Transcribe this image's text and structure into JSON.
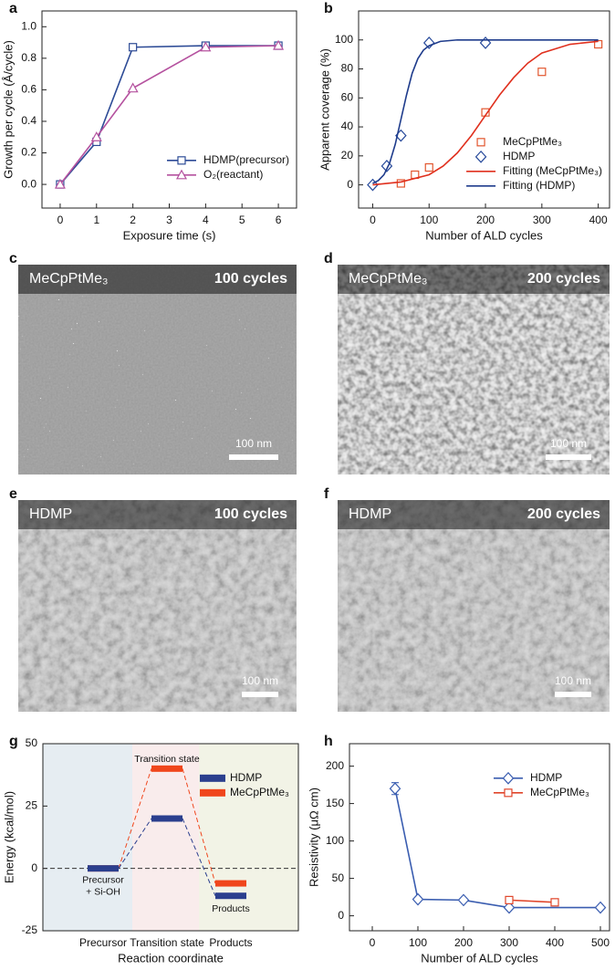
{
  "chart_data": [
    {
      "label": "a",
      "type": "line",
      "xlabel": "Exposure time (s)",
      "ylabel": "Growth per cycle (Å/cycle)",
      "x": [
        0,
        1,
        2,
        4,
        6
      ],
      "xlim": [
        -0.5,
        6.5
      ],
      "xticks": [
        0,
        1,
        2,
        3,
        4,
        5,
        6
      ],
      "ylim": [
        -0.15,
        1.1
      ],
      "yticks": [
        {
          "value": 0,
          "label": "0.0"
        },
        {
          "value": 0.2,
          "label": "0.2"
        },
        {
          "value": 0.4,
          "label": "0.4"
        },
        {
          "value": 0.6,
          "label": "0.6"
        },
        {
          "value": 0.8,
          "label": "0.8"
        },
        {
          "value": 1,
          "label": "1.0"
        }
      ],
      "legend": "lower right",
      "series": [
        {
          "name": "HDMP(precursor)",
          "color": "#2d4b96",
          "marker": "square",
          "values": [
            0,
            0.27,
            0.87,
            0.88,
            0.88
          ]
        },
        {
          "name": "O₂(reactant)",
          "color": "#b5529f",
          "marker": "triangle",
          "values": [
            0,
            0.3,
            0.61,
            0.87,
            0.88
          ]
        }
      ]
    },
    {
      "label": "b",
      "type": "line",
      "xlabel": "Number of ALD cycles",
      "ylabel": "Apparent coverage (%)",
      "xlim": [
        -25,
        420
      ],
      "xticks": [
        0,
        100,
        200,
        300,
        400
      ],
      "ylim": [
        -16,
        120
      ],
      "yticks": [
        0,
        20,
        40,
        60,
        80,
        100
      ],
      "legend": "lower right",
      "series": [
        {
          "name": "MeCpPtMe₃",
          "color": "#e2562e",
          "marker": "square",
          "line": false,
          "x": [
            50,
            75,
            100,
            200,
            300,
            400
          ],
          "values": [
            1,
            7,
            12,
            50,
            78,
            97
          ]
        },
        {
          "name": "HDMP",
          "color": "#2a4c9c",
          "marker": "diamond",
          "line": false,
          "x": [
            0,
            25,
            50,
            100,
            200
          ],
          "values": [
            0,
            13,
            34,
            98,
            98
          ]
        },
        {
          "name": "Fitting (MeCpPtMe₃)",
          "color": "#e0301e",
          "x": [
            0,
            50,
            100,
            125,
            150,
            175,
            200,
            225,
            250,
            275,
            300,
            350,
            400
          ],
          "values": [
            0,
            2,
            7,
            13,
            22,
            34,
            48,
            62,
            74,
            84,
            91,
            97,
            99
          ]
        },
        {
          "name": "Fitting (HDMP)",
          "color": "#1f3c8c",
          "x": [
            0,
            10,
            20,
            30,
            40,
            50,
            60,
            70,
            80,
            90,
            100,
            120,
            150,
            200,
            300,
            400
          ],
          "values": [
            1,
            3,
            7,
            15,
            28,
            45,
            62,
            77,
            87,
            93,
            96,
            99,
            100,
            100,
            100,
            100
          ]
        }
      ]
    },
    {
      "label": "g",
      "type": "level",
      "xlabel": "Reaction coordinate",
      "ylabel": "Energy (kcal/mol)",
      "categories": [
        "Precursor",
        "Transition state",
        "Products"
      ],
      "ylim": [
        -25,
        50
      ],
      "yticks": [
        -25,
        0,
        25,
        50
      ],
      "legend": "upper right",
      "zero_line": true,
      "annotations": [
        "Transition state",
        "Precursor",
        "+ Si-OH",
        "Products"
      ],
      "series": [
        {
          "name": "HDMP",
          "color": "#2b3f8e",
          "values": [
            0,
            20,
            -11
          ]
        },
        {
          "name": "MeCpPtMe₃",
          "color": "#f0461c",
          "values": [
            0,
            40,
            -6
          ]
        }
      ]
    },
    {
      "label": "h",
      "type": "line",
      "xlabel": "Number of ALD cycles",
      "ylabel": "Resistivity (μΩ cm)",
      "xlim": [
        -50,
        520
      ],
      "xticks": [
        0,
        100,
        200,
        300,
        400,
        500
      ],
      "ylim": [
        -20,
        230
      ],
      "yticks": [
        0,
        50,
        100,
        150,
        200
      ],
      "legend": "upper right",
      "series": [
        {
          "name": "HDMP",
          "color": "#3a5db0",
          "marker": "diamond",
          "x": [
            50,
            100,
            200,
            300,
            500
          ],
          "values": [
            170,
            22,
            21,
            11,
            11
          ],
          "errors": [
            8,
            null,
            null,
            null,
            null
          ]
        },
        {
          "name": "MeCpPtMe₃",
          "color": "#e0452a",
          "marker": "square",
          "x": [
            300,
            400
          ],
          "values": [
            21,
            18
          ]
        }
      ]
    }
  ],
  "images": [
    {
      "label": "c",
      "precursor": "MeCpPtMe₃",
      "cycles": "100 cycles",
      "scale_bar": "100 nm"
    },
    {
      "label": "d",
      "precursor": "MeCpPtMe₃",
      "cycles": "200 cycles",
      "scale_bar": "100 nm"
    },
    {
      "label": "e",
      "precursor": "HDMP",
      "cycles": "100 cycles",
      "scale_bar": "100 nm"
    },
    {
      "label": "f",
      "precursor": "HDMP",
      "cycles": "200 cycles",
      "scale_bar": "100 nm"
    }
  ]
}
